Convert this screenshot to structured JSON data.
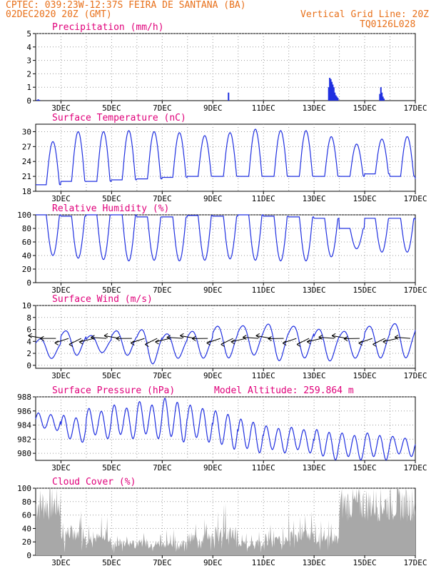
{
  "header": {
    "line1": "CPTEC:  039:23W-12:37S  FEIRA DE SANTANA (BA)",
    "line2": "02DEC2020 20Z (GMT)",
    "grid_note": "Vertical Grid Line: 20Z",
    "run_code": "TQ0126L028"
  },
  "colors": {
    "header_text": "#e8701a",
    "panel_title": "#e0007a",
    "series": "#2030e0",
    "cloud_fill": "#a8a8a8",
    "grid": "#9a9a9a"
  },
  "chart_data": [
    {
      "type": "bar",
      "title": "Precipitation (mm/h)",
      "x_tick_labels": [
        "3DEC",
        "5DEC",
        "7DEC",
        "9DEC",
        "11DEC",
        "13DEC",
        "15DEC",
        "17DEC"
      ],
      "xlim_days": [
        2.0,
        17.0
      ],
      "ylim": [
        0,
        5
      ],
      "yticks": [
        0,
        1,
        2,
        3,
        4,
        5
      ],
      "grid": true,
      "x": [
        2.05,
        2.1,
        2.15,
        9.62,
        13.58,
        13.62,
        13.66,
        13.7,
        13.74,
        13.78,
        13.82,
        13.86,
        13.9,
        13.94,
        15.6,
        15.64,
        15.68,
        15.72,
        15.76
      ],
      "values": [
        0.05,
        0.1,
        0.05,
        0.6,
        1.0,
        1.7,
        1.6,
        1.4,
        1.2,
        1.0,
        0.6,
        0.4,
        0.3,
        0.2,
        0.5,
        1.0,
        0.6,
        0.3,
        0.15
      ]
    },
    {
      "type": "line",
      "title": "Surface Temperature (nC)",
      "x_tick_labels": [
        "3DEC",
        "5DEC",
        "7DEC",
        "9DEC",
        "11DEC",
        "13DEC",
        "15DEC",
        "17DEC"
      ],
      "xlim_days": [
        2.0,
        17.0
      ],
      "ylim": [
        18,
        31.5
      ],
      "yticks": [
        18,
        21,
        24,
        27,
        30
      ],
      "grid": true,
      "daily_min": [
        19.3,
        20.0,
        20.0,
        20.3,
        20.5,
        20.8,
        21.0,
        21.0,
        21.0,
        21.0,
        21.0,
        21.0,
        21.0,
        21.5,
        21.0,
        20.5
      ],
      "daily_max": [
        28.0,
        30.0,
        30.0,
        30.2,
        30.0,
        29.8,
        29.2,
        29.8,
        30.5,
        30.2,
        30.2,
        29.0,
        27.5,
        28.5,
        29.0,
        31.0
      ]
    },
    {
      "type": "line",
      "title": "Relative Humidity (%)",
      "x_tick_labels": [
        "3DEC",
        "5DEC",
        "7DEC",
        "9DEC",
        "11DEC",
        "13DEC",
        "15DEC",
        "17DEC"
      ],
      "xlim_days": [
        2.0,
        17.0
      ],
      "ylim": [
        0,
        100
      ],
      "yticks": [
        0,
        20,
        40,
        60,
        80,
        100
      ],
      "grid": true,
      "daily_low": [
        40,
        36,
        34,
        32,
        33,
        32,
        33,
        35,
        33,
        32,
        32,
        38,
        50,
        45,
        45,
        38
      ],
      "daily_high": [
        100,
        98,
        100,
        100,
        97,
        97,
        99,
        98,
        100,
        98,
        97,
        95,
        80,
        95,
        95,
        92
      ]
    },
    {
      "type": "line",
      "title": "Surface Wind (m/s)",
      "x_tick_labels": [
        "3DEC",
        "5DEC",
        "7DEC",
        "9DEC",
        "11DEC",
        "13DEC",
        "15DEC",
        "17DEC"
      ],
      "xlim_days": [
        2.0,
        17.0
      ],
      "ylim": [
        -0.5,
        10
      ],
      "yticks": [
        0,
        2,
        4,
        6,
        8,
        10
      ],
      "grid": true,
      "daily_min": [
        1.0,
        1.5,
        2.0,
        1.5,
        0.0,
        1.0,
        1.0,
        1.0,
        1.5,
        0.5,
        1.0,
        0.5,
        1.0,
        1.0,
        1.0,
        1.5
      ],
      "daily_max": [
        5.0,
        6.5,
        5.5,
        6.5,
        7.0,
        6.0,
        6.5,
        7.5,
        7.5,
        8.0,
        7.5,
        7.0,
        6.5,
        7.5,
        8.0,
        8.0
      ],
      "wind_vectors": "direction arrows centred on the 4.5 m/s line"
    },
    {
      "type": "line",
      "title": "Surface Pressure (hPa)",
      "annotation": "Model Altitude: 259.864 m",
      "x_tick_labels": [
        "3DEC",
        "5DEC",
        "7DEC",
        "9DEC",
        "11DEC",
        "13DEC",
        "15DEC",
        "17DEC"
      ],
      "xlim_days": [
        2.0,
        17.0
      ],
      "ylim": [
        979,
        988
      ],
      "yticks": [
        980,
        982,
        984,
        986,
        988
      ],
      "grid": true,
      "daily_max": [
        985.8,
        985.5,
        986.5,
        987.0,
        987.5,
        988.0,
        987.0,
        986.2,
        985.0,
        984.0,
        983.8,
        983.5,
        983.0,
        983.0,
        982.5,
        982.0
      ],
      "daily_min": [
        983.2,
        981.5,
        982.0,
        982.0,
        982.0,
        981.5,
        981.5,
        980.5,
        980.0,
        980.0,
        980.0,
        979.0,
        979.0,
        979.0,
        979.5,
        980.0
      ]
    },
    {
      "type": "area",
      "title": "Cloud Cover (%)",
      "x_tick_labels": [
        "3DEC",
        "5DEC",
        "7DEC",
        "9DEC",
        "11DEC",
        "13DEC",
        "15DEC",
        "17DEC"
      ],
      "xlim_days": [
        2.0,
        17.0
      ],
      "ylim": [
        0,
        100
      ],
      "yticks": [
        0,
        20,
        40,
        60,
        80,
        100
      ],
      "grid": true,
      "daily_level": [
        90,
        40,
        30,
        20,
        20,
        20,
        30,
        40,
        20,
        25,
        35,
        30,
        90,
        90,
        90,
        90
      ]
    }
  ]
}
